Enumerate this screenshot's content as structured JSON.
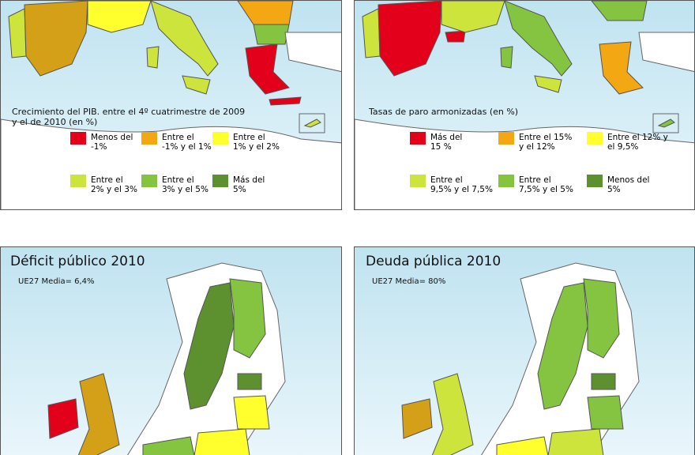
{
  "panels": [
    {
      "title": "Crecimiento del PIB. entre el 4º cuatrimestre de 2009\n y el de  2010 (en %)",
      "legend": [
        {
          "label": "Menos del\n-1%",
          "color": "#e2001a"
        },
        {
          "label": "Entre el\n-1% y el 1%",
          "color": "#f3a712"
        },
        {
          "label": "Entre el\n1% y el 2%",
          "color": "#ffff2e"
        },
        {
          "label": "Entre el\n2% y el 3%",
          "color": "#cde43c"
        },
        {
          "label": "Entre el\n3% y el 5%",
          "color": "#84c441"
        },
        {
          "label": "Más del\n5%",
          "color": "#5d9130"
        }
      ]
    },
    {
      "title": "Tasas de paro armonizadas (en %)",
      "legend": [
        {
          "label": "Más del\n15 %",
          "color": "#e2001a"
        },
        {
          "label": "Entre el 15%\ny el 12%",
          "color": "#f3a712"
        },
        {
          "label": "Entre el 12% y\n el 9,5%",
          "color": "#ffff2e"
        },
        {
          "label": "Entre el\n9,5% y el 7,5%",
          "color": "#cde43c"
        },
        {
          "label": "Entre el\n7,5% y el 5%",
          "color": "#84c441"
        },
        {
          "label": "Menos del\n5%",
          "color": "#5d9130"
        }
      ]
    },
    {
      "title": "Déficit público 2010",
      "subtitle": "UE27 Media= 6,4%"
    },
    {
      "title": "Deuda pública 2010",
      "subtitle": "UE27 Media= 80%"
    }
  ]
}
